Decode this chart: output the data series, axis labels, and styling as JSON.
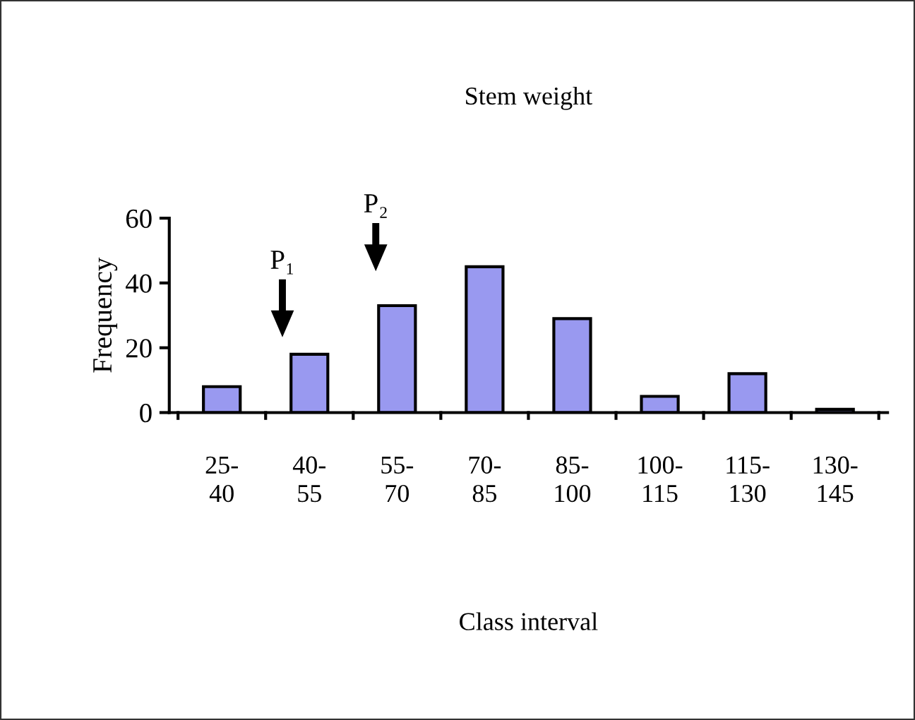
{
  "chart_data": {
    "type": "bar",
    "title": "Stem weight",
    "xlabel": "Class interval",
    "ylabel": "Frequency",
    "categories": [
      "25-\n40",
      "40-\n55",
      "55-\n70",
      "70-\n85",
      "85-\n100",
      "100-\n115",
      "115-\n130",
      "130-\n145"
    ],
    "values": [
      8,
      18,
      33,
      45,
      29,
      5,
      12,
      1
    ],
    "color": "#9999f0",
    "ylim": [
      0,
      60
    ],
    "yticks": [
      0,
      20,
      40,
      60
    ],
    "grid": false,
    "legend": false,
    "annotations": [
      "P₁",
      "P₂"
    ]
  }
}
